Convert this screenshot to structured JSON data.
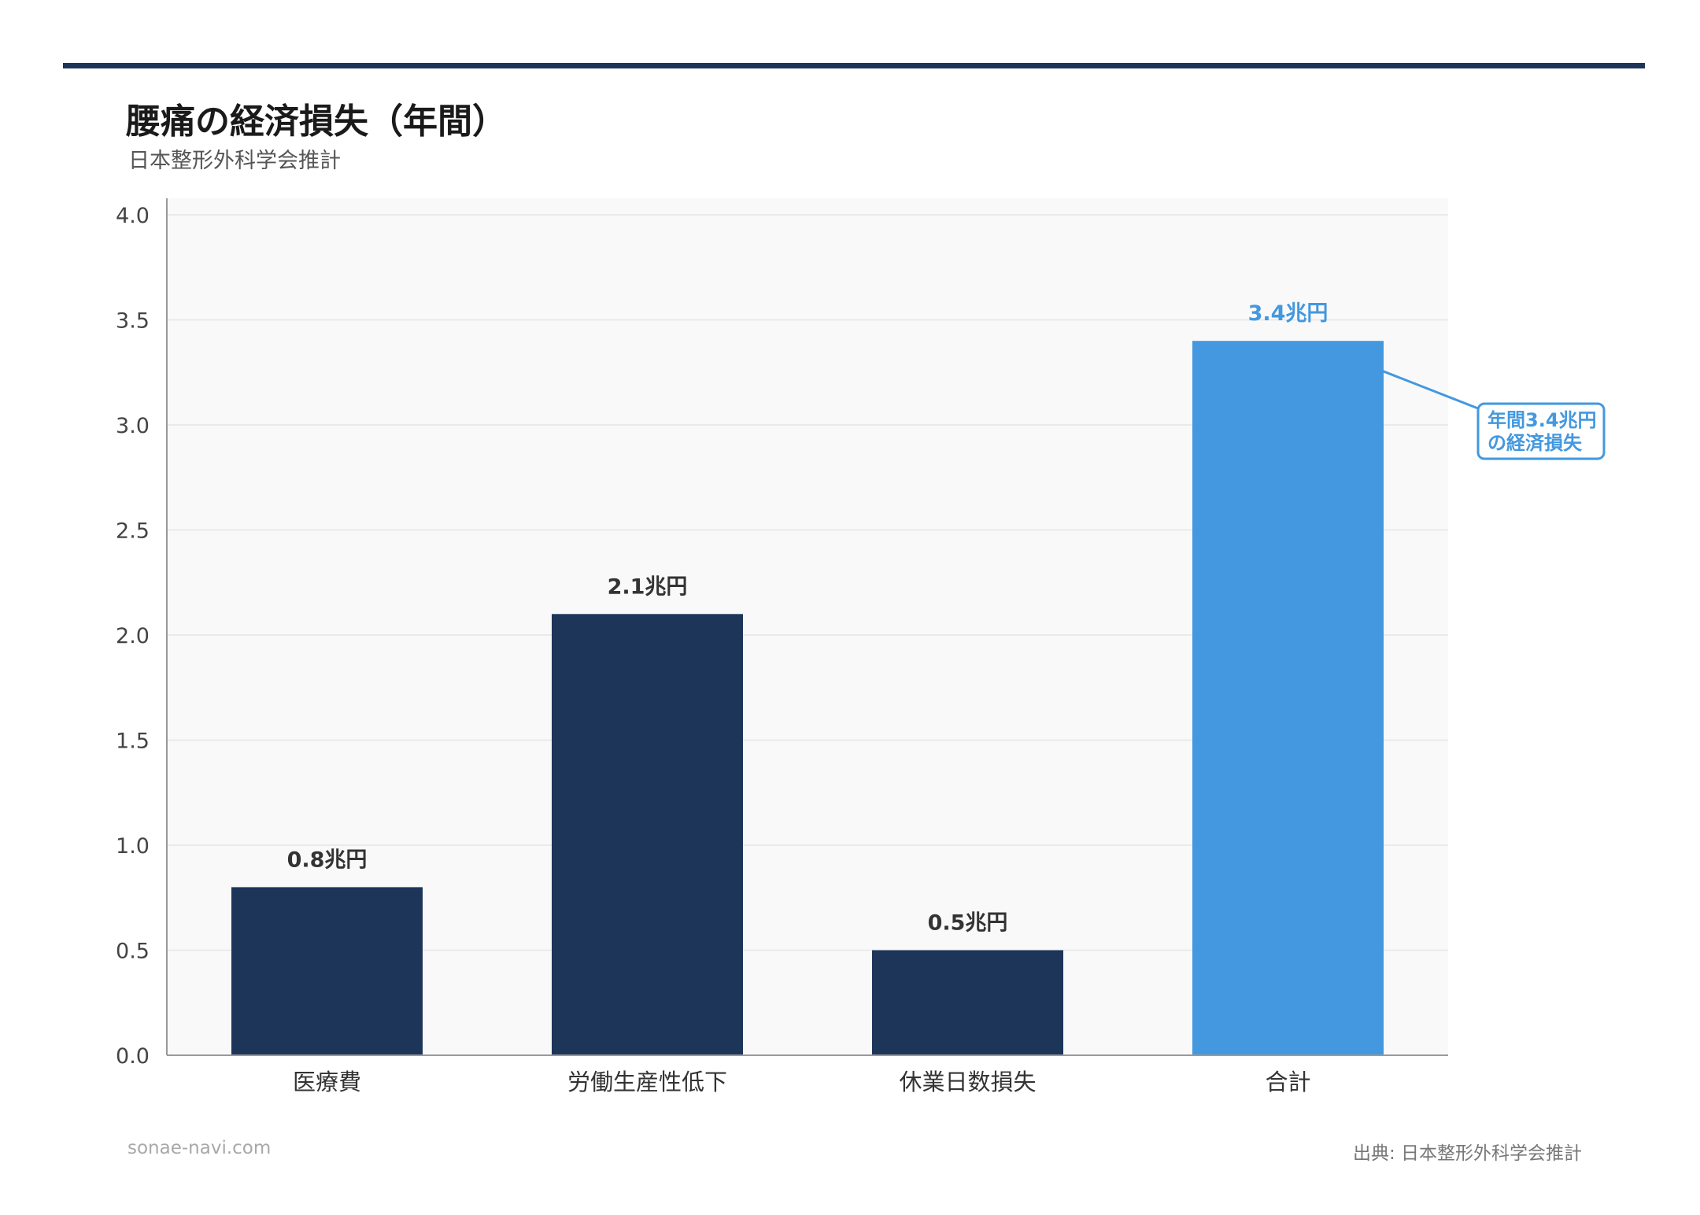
{
  "title": "腰痛の経済損失（年間）",
  "subtitle": "日本整形外科学会推計",
  "footer": {
    "site": "sonae-navi.com",
    "source": "出典: 日本整形外科学会推計"
  },
  "colors": {
    "primary": "#1c3559",
    "highlight": "#4398df",
    "plot_bg": "#f9f9f9",
    "grid": "#e6e6e6"
  },
  "chart_data": {
    "type": "bar",
    "categories": [
      "医療費",
      "労働生産性低下",
      "休業日数損失",
      "合計"
    ],
    "values": [
      0.8,
      2.1,
      0.5,
      3.4
    ],
    "value_labels": [
      "0.8兆円",
      "2.1兆円",
      "0.5兆円",
      "3.4兆円"
    ],
    "highlight_index": 3,
    "title": "腰痛の経済損失（年間）",
    "subtitle": "日本整形外科学会推計",
    "xlabel": "",
    "ylabel": "",
    "ylim": [
      0,
      4.0
    ],
    "yticks": [
      0.0,
      0.5,
      1.0,
      1.5,
      2.0,
      2.5,
      3.0,
      3.5,
      4.0
    ],
    "ytick_labels": [
      "0.0",
      "0.5",
      "1.0",
      "1.5",
      "2.0",
      "2.5",
      "3.0",
      "3.5",
      "4.0"
    ],
    "grid": true,
    "annotation": {
      "lines": [
        "年間3.4兆円",
        "の経済損失"
      ],
      "target_index": 3
    }
  }
}
